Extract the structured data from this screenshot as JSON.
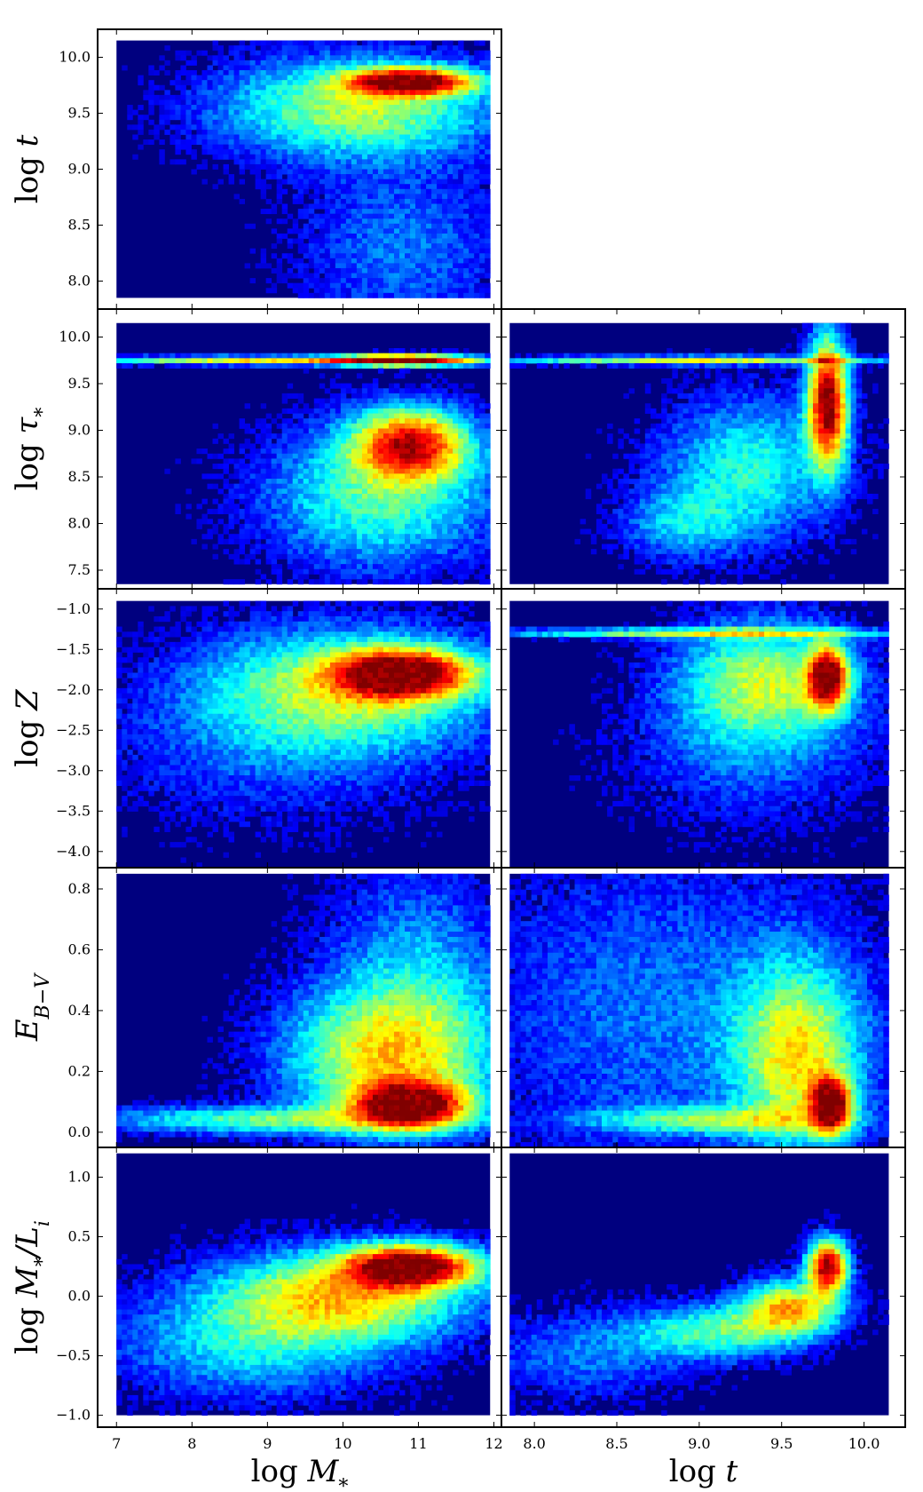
{
  "chart_data": {
    "type": "heatmap",
    "colormap": "jet",
    "background_color": "#00007f",
    "panels": [
      {
        "row": 1,
        "col": 1,
        "x_param": "logM",
        "y_param": "logt",
        "xlim": [
          6.75,
          12.1
        ],
        "ylim": [
          7.75,
          10.25
        ],
        "yticks": [
          8.0,
          8.5,
          9.0,
          9.5,
          10.0
        ],
        "data_range_x": [
          7.0,
          11.95
        ],
        "data_range_y": [
          7.85,
          10.15
        ],
        "peaks": [
          {
            "x": 10.9,
            "y": 9.78,
            "sx": 0.55,
            "sy": 0.08,
            "w": 1.0
          },
          {
            "x": 10.2,
            "y": 9.55,
            "sx": 1.2,
            "sy": 0.3,
            "w": 0.45
          },
          {
            "x": 10.8,
            "y": 8.3,
            "sx": 0.9,
            "sy": 0.5,
            "w": 0.15
          }
        ]
      },
      {
        "row": 2,
        "col": 1,
        "x_param": "logM",
        "y_param": "logtau",
        "xlim": [
          6.75,
          12.1
        ],
        "ylim": [
          7.3,
          10.3
        ],
        "yticks": [
          7.5,
          8.0,
          8.5,
          9.0,
          9.5,
          10.0
        ],
        "data_range_x": [
          7.0,
          11.95
        ],
        "data_range_y": [
          7.35,
          10.15
        ],
        "peaks": [
          {
            "x": 10.8,
            "y": 9.75,
            "sx": 0.6,
            "sy": 0.04,
            "w": 1.0
          },
          {
            "x": 9.0,
            "y": 9.75,
            "sx": 1.6,
            "sy": 0.03,
            "w": 0.55
          },
          {
            "x": 10.9,
            "y": 8.85,
            "sx": 0.5,
            "sy": 0.25,
            "w": 0.8
          },
          {
            "x": 10.5,
            "y": 8.3,
            "sx": 1.0,
            "sy": 0.5,
            "w": 0.35
          }
        ]
      },
      {
        "row": 2,
        "col": 2,
        "x_param": "logt",
        "y_param": "logtau",
        "xlim": [
          7.8,
          10.25
        ],
        "ylim": [
          7.3,
          10.3
        ],
        "yticks": [
          7.5,
          8.0,
          8.5,
          9.0,
          9.5,
          10.0
        ],
        "data_range_x": [
          7.85,
          10.15
        ],
        "data_range_y": [
          7.35,
          10.15
        ],
        "peaks": [
          {
            "x": 9.78,
            "y": 9.3,
            "sx": 0.08,
            "sy": 0.45,
            "w": 1.0
          },
          {
            "x": 9.0,
            "y": 9.75,
            "sx": 0.8,
            "sy": 0.03,
            "w": 0.5
          },
          {
            "x": 9.3,
            "y": 8.6,
            "sx": 0.35,
            "sy": 0.5,
            "w": 0.3
          },
          {
            "x": 8.9,
            "y": 8.0,
            "sx": 0.25,
            "sy": 0.25,
            "w": 0.2
          }
        ]
      },
      {
        "row": 3,
        "col": 1,
        "x_param": "logM",
        "y_param": "logZ",
        "xlim": [
          6.75,
          12.1
        ],
        "ylim": [
          -4.2,
          -0.75
        ],
        "yticks": [
          -4.0,
          -3.5,
          -3.0,
          -2.5,
          -2.0,
          -1.5,
          -1.0
        ],
        "data_range_x": [
          7.0,
          11.95
        ],
        "data_range_y": [
          -4.2,
          -0.9
        ],
        "peaks": [
          {
            "x": 10.8,
            "y": -1.8,
            "sx": 0.6,
            "sy": 0.2,
            "w": 1.0
          },
          {
            "x": 10.0,
            "y": -2.0,
            "sx": 1.3,
            "sy": 0.5,
            "w": 0.45
          },
          {
            "x": 9.0,
            "y": -2.8,
            "sx": 1.5,
            "sy": 0.6,
            "w": 0.1
          }
        ]
      },
      {
        "row": 3,
        "col": 2,
        "x_param": "logt",
        "y_param": "logZ",
        "xlim": [
          7.8,
          10.25
        ],
        "ylim": [
          -4.2,
          -0.75
        ],
        "yticks": [
          -4.0,
          -3.5,
          -3.0,
          -2.5,
          -2.0,
          -1.5,
          -1.0
        ],
        "data_range_x": [
          7.85,
          10.15
        ],
        "data_range_y": [
          -4.2,
          -0.9
        ],
        "peaks": [
          {
            "x": 9.78,
            "y": -1.85,
            "sx": 0.08,
            "sy": 0.25,
            "w": 1.0
          },
          {
            "x": 9.4,
            "y": -1.9,
            "sx": 0.35,
            "sy": 0.5,
            "w": 0.45
          },
          {
            "x": 9.0,
            "y": -1.3,
            "sx": 0.8,
            "sy": 0.04,
            "w": 0.45
          },
          {
            "x": 9.3,
            "y": -2.8,
            "sx": 0.5,
            "sy": 0.6,
            "w": 0.12
          }
        ]
      },
      {
        "row": 4,
        "col": 1,
        "x_param": "logM",
        "y_param": "EBV",
        "xlim": [
          6.75,
          12.1
        ],
        "ylim": [
          -0.05,
          0.87
        ],
        "yticks": [
          0.0,
          0.2,
          0.4,
          0.6,
          0.8
        ],
        "data_range_x": [
          7.0,
          11.95
        ],
        "data_range_y": [
          -0.05,
          0.85
        ],
        "peaks": [
          {
            "x": 10.9,
            "y": 0.09,
            "sx": 0.5,
            "sy": 0.05,
            "w": 1.0
          },
          {
            "x": 10.6,
            "y": 0.25,
            "sx": 0.9,
            "sy": 0.15,
            "w": 0.5
          },
          {
            "x": 9.0,
            "y": 0.04,
            "sx": 1.5,
            "sy": 0.03,
            "w": 0.35
          },
          {
            "x": 11.0,
            "y": 0.5,
            "sx": 0.8,
            "sy": 0.25,
            "w": 0.2
          }
        ]
      },
      {
        "row": 4,
        "col": 2,
        "x_param": "logt",
        "y_param": "EBV",
        "xlim": [
          7.8,
          10.25
        ],
        "ylim": [
          -0.05,
          0.87
        ],
        "yticks": [
          0.0,
          0.2,
          0.4,
          0.6,
          0.8
        ],
        "data_range_x": [
          7.85,
          10.15
        ],
        "data_range_y": [
          -0.05,
          0.85
        ],
        "peaks": [
          {
            "x": 9.8,
            "y": 0.09,
            "sx": 0.08,
            "sy": 0.06,
            "w": 1.0
          },
          {
            "x": 9.6,
            "y": 0.25,
            "sx": 0.25,
            "sy": 0.2,
            "w": 0.5
          },
          {
            "x": 9.1,
            "y": 0.04,
            "sx": 0.5,
            "sy": 0.03,
            "w": 0.35
          },
          {
            "x": 8.8,
            "y": 0.4,
            "sx": 0.8,
            "sy": 0.35,
            "w": 0.15
          }
        ]
      },
      {
        "row": 5,
        "col": 1,
        "x_param": "logM",
        "y_param": "logML",
        "xlim": [
          6.75,
          12.1
        ],
        "ylim": [
          -1.1,
          1.25
        ],
        "yticks": [
          -1.0,
          -0.5,
          0.0,
          0.5,
          1.0
        ],
        "data_range_x": [
          7.0,
          11.95
        ],
        "data_range_y": [
          -1.0,
          1.2
        ],
        "peaks": [
          {
            "x": 10.9,
            "y": 0.25,
            "sx": 0.6,
            "sy": 0.12,
            "w": 1.0
          },
          {
            "x": 10.0,
            "y": 0.0,
            "sx": 1.1,
            "sy": 0.25,
            "w": 0.55
          },
          {
            "x": 8.8,
            "y": -0.4,
            "sx": 1.2,
            "sy": 0.3,
            "w": 0.25
          }
        ]
      },
      {
        "row": 5,
        "col": 2,
        "x_param": "logt",
        "y_param": "logML",
        "xlim": [
          7.8,
          10.25
        ],
        "ylim": [
          -1.1,
          1.25
        ],
        "yticks": [
          -1.0,
          -0.5,
          0.0,
          0.5,
          1.0
        ],
        "data_range_x": [
          7.85,
          10.15
        ],
        "data_range_y": [
          -1.0,
          1.2
        ],
        "peaks": [
          {
            "x": 9.78,
            "y": 0.25,
            "sx": 0.08,
            "sy": 0.15,
            "w": 1.0
          },
          {
            "x": 9.55,
            "y": -0.1,
            "sx": 0.2,
            "sy": 0.15,
            "w": 0.6
          },
          {
            "x": 9.1,
            "y": -0.3,
            "sx": 0.35,
            "sy": 0.15,
            "w": 0.35
          },
          {
            "x": 8.3,
            "y": -0.5,
            "sx": 0.4,
            "sy": 0.25,
            "w": 0.15
          }
        ]
      }
    ],
    "x_axes": {
      "logM": {
        "label": "log M",
        "label_sub": "*",
        "ticks": [
          7,
          8,
          9,
          10,
          11,
          12
        ]
      },
      "logt": {
        "label": "log t",
        "ticks": [
          8.0,
          8.5,
          9.0,
          9.5,
          10.0
        ]
      }
    },
    "y_axes": {
      "logt": {
        "label": "log t"
      },
      "logtau": {
        "label": "log τ",
        "label_sub": "*"
      },
      "logZ": {
        "label": "log Z"
      },
      "EBV": {
        "label": "E",
        "label_sub": "B−V"
      },
      "logML": {
        "label": "log M",
        "label_sub": "*",
        "label_suffix": "/L",
        "label_suffix_sub": "i"
      }
    }
  }
}
